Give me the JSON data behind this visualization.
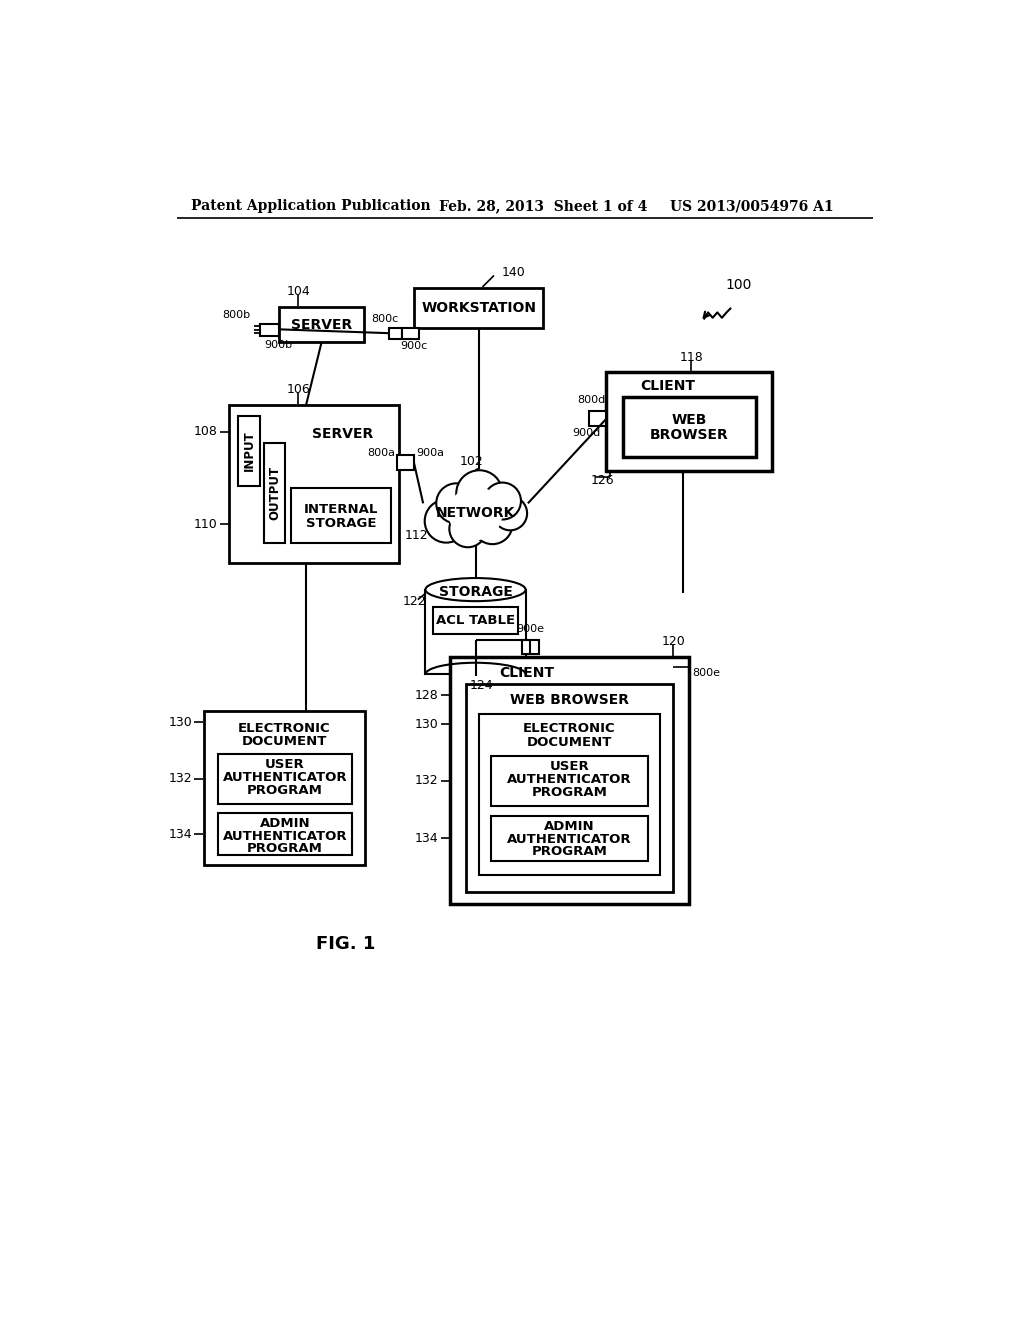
{
  "bg_color": "#ffffff",
  "header_left": "Patent Application Publication",
  "header_mid": "Feb. 28, 2013  Sheet 1 of 4",
  "header_right": "US 2013/0054976 A1",
  "fig_label": "FIG. 1",
  "figure_number": "100"
}
